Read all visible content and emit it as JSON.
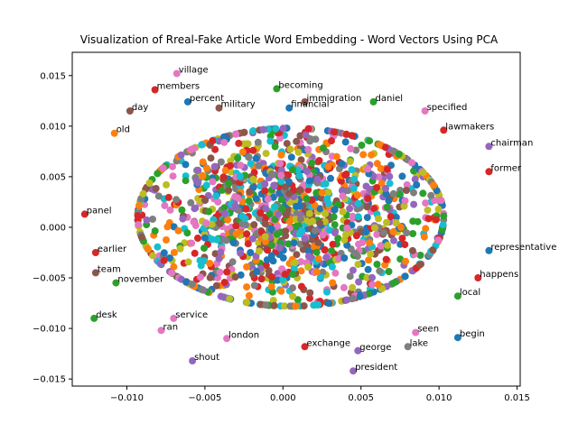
{
  "chart_data": {
    "type": "scatter",
    "title": "Visualization of Rreal-Fake Article Word Embedding - Word Vectors Using PCA",
    "xlabel": "",
    "ylabel": "",
    "xlim": [
      -0.0135,
      0.0152
    ],
    "ylim": [
      -0.0157,
      0.0173
    ],
    "grid": false,
    "x_ticks": [
      -0.01,
      -0.005,
      0.0,
      0.005,
      0.01,
      0.015
    ],
    "x_tick_labels": [
      "−0.010",
      "−0.005",
      "0.000",
      "0.005",
      "0.010",
      "0.015"
    ],
    "y_ticks": [
      -0.015,
      -0.01,
      -0.005,
      0.0,
      0.005,
      0.01,
      0.015
    ],
    "y_tick_labels": [
      "−0.015",
      "−0.010",
      "−0.005",
      "0.000",
      "0.005",
      "0.010",
      "0.015"
    ],
    "palette": [
      "#1f77b4",
      "#ff7f0e",
      "#2ca02c",
      "#d62728",
      "#9467bd",
      "#8c564b",
      "#e377c2",
      "#7f7f7f",
      "#bcbd22",
      "#17becf"
    ],
    "cluster": {
      "center_x": 0.0005,
      "center_y": 0.001,
      "rx": 0.0098,
      "ry": 0.0088,
      "count": 1400
    },
    "points": [
      {
        "word": "village",
        "x": -0.0068,
        "y": 0.0152,
        "color": "#e377c2"
      },
      {
        "word": "members",
        "x": -0.0082,
        "y": 0.0136,
        "color": "#d62728"
      },
      {
        "word": "percent",
        "x": -0.0061,
        "y": 0.0124,
        "color": "#1f77b4"
      },
      {
        "word": "becoming",
        "x": -0.0004,
        "y": 0.0137,
        "color": "#2ca02c"
      },
      {
        "word": "military",
        "x": -0.0041,
        "y": 0.0118,
        "color": "#8c564b"
      },
      {
        "word": "day",
        "x": -0.0098,
        "y": 0.0115,
        "color": "#8c564b"
      },
      {
        "word": "immigration",
        "x": 0.0014,
        "y": 0.0124,
        "color": "#8c564b"
      },
      {
        "word": "daniel",
        "x": 0.0058,
        "y": 0.0124,
        "color": "#2ca02c"
      },
      {
        "word": "financial",
        "x": 0.0004,
        "y": 0.0118,
        "color": "#1f77b4"
      },
      {
        "word": "specified",
        "x": 0.0091,
        "y": 0.0115,
        "color": "#e377c2"
      },
      {
        "word": "chairman",
        "x": 0.0132,
        "y": 0.008,
        "color": "#9467bd"
      },
      {
        "word": "lawmakers",
        "x": 0.0103,
        "y": 0.0096,
        "color": "#d62728"
      },
      {
        "word": "old",
        "x": -0.0108,
        "y": 0.0093,
        "color": "#ff7f0e"
      },
      {
        "word": "former",
        "x": 0.0132,
        "y": 0.0055,
        "color": "#d62728"
      },
      {
        "word": "panel",
        "x": -0.0127,
        "y": 0.0013,
        "color": "#d62728"
      },
      {
        "word": "november",
        "x": -0.0107,
        "y": -0.0055,
        "color": "#2ca02c"
      },
      {
        "word": "representative",
        "x": 0.0132,
        "y": -0.0023,
        "color": "#1f77b4"
      },
      {
        "word": "local",
        "x": 0.0112,
        "y": -0.0068,
        "color": "#2ca02c"
      },
      {
        "word": "seen",
        "x": 0.0085,
        "y": -0.0104,
        "color": "#e377c2"
      },
      {
        "word": "begin",
        "x": 0.0112,
        "y": -0.0109,
        "color": "#1f77b4"
      },
      {
        "word": "ran",
        "x": -0.0078,
        "y": -0.0102,
        "color": "#e377c2"
      },
      {
        "word": "shout",
        "x": -0.0058,
        "y": -0.0132,
        "color": "#9467bd"
      },
      {
        "word": "president",
        "x": 0.0045,
        "y": -0.0142,
        "color": "#9467bd"
      },
      {
        "word": "london",
        "x": -0.0036,
        "y": -0.011,
        "color": "#e377c2"
      },
      {
        "word": "exchange",
        "x": 0.0014,
        "y": -0.0118,
        "color": "#d62728"
      },
      {
        "word": "george",
        "x": 0.0048,
        "y": -0.0122,
        "color": "#9467bd"
      },
      {
        "word": "earlier",
        "x": -0.012,
        "y": -0.0025,
        "color": "#d62728"
      },
      {
        "word": "team",
        "x": -0.012,
        "y": -0.0045,
        "color": "#8c564b"
      },
      {
        "word": "service",
        "x": -0.007,
        "y": -0.009,
        "color": "#e377c2"
      },
      {
        "word": "desk",
        "x": -0.0121,
        "y": -0.009,
        "color": "#2ca02c"
      },
      {
        "word": "lake",
        "x": 0.008,
        "y": -0.0118,
        "color": "#7f7f7f"
      },
      {
        "word": "happens",
        "x": 0.0125,
        "y": -0.005,
        "color": "#d62728"
      }
    ]
  }
}
